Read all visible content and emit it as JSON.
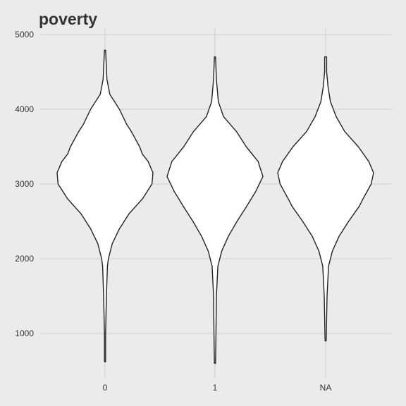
{
  "chart_data": {
    "type": "violin",
    "title": "poverty",
    "xlabel": "",
    "ylabel": "",
    "categories": [
      "0",
      "1",
      "NA"
    ],
    "y_ticks": [
      1000,
      2000,
      3000,
      4000,
      5000
    ],
    "ylim": [
      500,
      5000
    ],
    "grid": true,
    "colors": {
      "background": "#ebebeb",
      "grid": "#cccccc",
      "violin_fill": "#ffffff",
      "violin_stroke": "#222222"
    },
    "series": [
      {
        "category": "0",
        "min": 620,
        "max": 4790,
        "density_profile": [
          [
            620,
            0.01
          ],
          [
            1000,
            0.01
          ],
          [
            1500,
            0.03
          ],
          [
            1900,
            0.05
          ],
          [
            2000,
            0.07
          ],
          [
            2200,
            0.15
          ],
          [
            2400,
            0.3
          ],
          [
            2600,
            0.5
          ],
          [
            2800,
            0.78
          ],
          [
            3000,
            0.98
          ],
          [
            3150,
            1.0
          ],
          [
            3300,
            0.9
          ],
          [
            3400,
            0.78
          ],
          [
            3500,
            0.72
          ],
          [
            3700,
            0.55
          ],
          [
            3800,
            0.45
          ],
          [
            4000,
            0.3
          ],
          [
            4200,
            0.1
          ],
          [
            4400,
            0.04
          ],
          [
            4790,
            0.01
          ]
        ]
      },
      {
        "category": "1",
        "min": 600,
        "max": 4700,
        "density_profile": [
          [
            600,
            0.01
          ],
          [
            1000,
            0.02
          ],
          [
            1500,
            0.03
          ],
          [
            1900,
            0.06
          ],
          [
            2100,
            0.14
          ],
          [
            2300,
            0.28
          ],
          [
            2500,
            0.46
          ],
          [
            2700,
            0.66
          ],
          [
            2900,
            0.85
          ],
          [
            3100,
            1.0
          ],
          [
            3300,
            0.9
          ],
          [
            3500,
            0.65
          ],
          [
            3700,
            0.45
          ],
          [
            3900,
            0.18
          ],
          [
            4100,
            0.07
          ],
          [
            4400,
            0.03
          ],
          [
            4700,
            0.01
          ]
        ]
      },
      {
        "category": "NA",
        "min": 900,
        "max": 4700,
        "density_profile": [
          [
            900,
            0.01
          ],
          [
            1200,
            0.02
          ],
          [
            1500,
            0.03
          ],
          [
            1900,
            0.06
          ],
          [
            2100,
            0.14
          ],
          [
            2300,
            0.28
          ],
          [
            2500,
            0.48
          ],
          [
            2700,
            0.7
          ],
          [
            2800,
            0.78
          ],
          [
            3000,
            0.95
          ],
          [
            3150,
            1.0
          ],
          [
            3300,
            0.9
          ],
          [
            3500,
            0.68
          ],
          [
            3700,
            0.4
          ],
          [
            3900,
            0.22
          ],
          [
            4100,
            0.1
          ],
          [
            4300,
            0.05
          ],
          [
            4500,
            0.02
          ],
          [
            4700,
            0.02
          ]
        ]
      }
    ]
  }
}
